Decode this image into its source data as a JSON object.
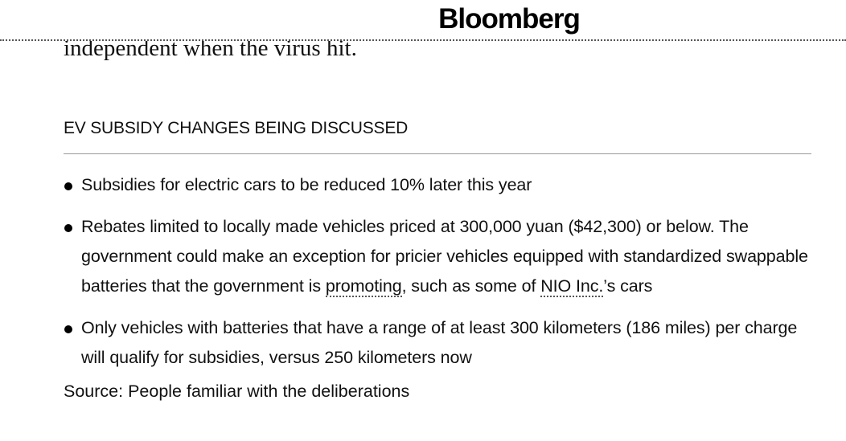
{
  "header": {
    "logo": "Bloomberg"
  },
  "previous_text": "independent when the virus hit.",
  "section": {
    "heading": "EV SUBSIDY CHANGES BEING DISCUSSED",
    "items": [
      {
        "text": "Subsidies for electric cars to be reduced 10% later this year"
      },
      {
        "before": "Rebates limited to locally made vehicles priced at 300,000 yuan ($42,300) or below. The government could make an exception for pricier vehicles equipped with standardized swappable batteries that the government is ",
        "link1": "promoting",
        "middle": ", such as some of ",
        "link2": "NIO Inc.",
        "after": "’s cars"
      },
      {
        "text": "Only vehicles with batteries that have a range of at least 300 kilometers (186 miles) per charge will qualify for subsidies, versus 250 kilometers now"
      }
    ],
    "source": "Source: People familiar with the deliberations"
  }
}
